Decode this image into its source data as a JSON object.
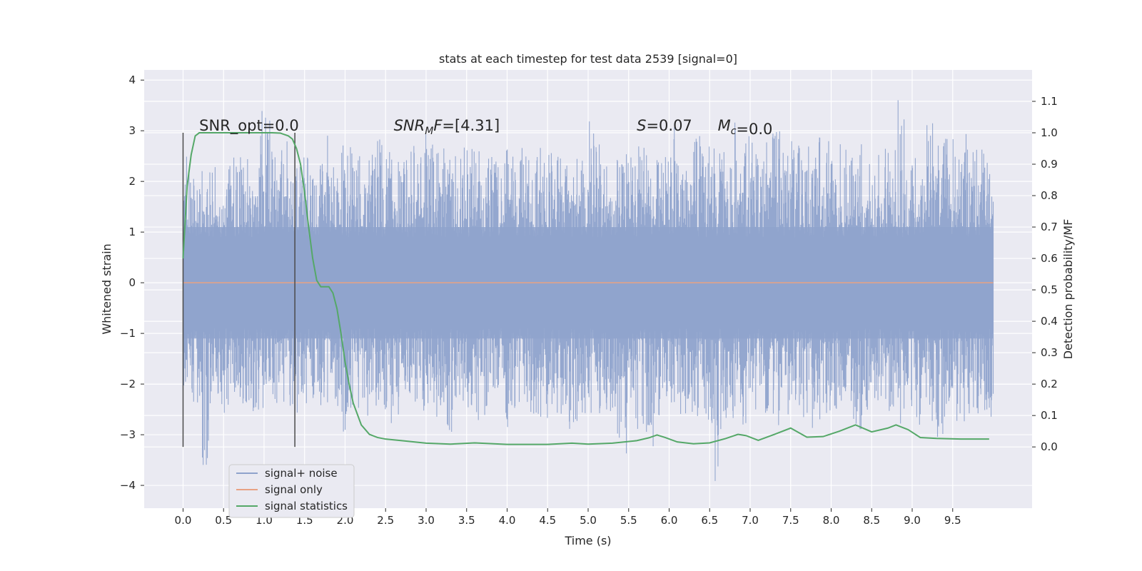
{
  "chart_data": {
    "type": "line",
    "title": "stats at each timestep for test data 2539 [signal=0]",
    "xlabel": "Time (s)",
    "ylabel": "Whitened strain",
    "y2label": "Detection probability/MF",
    "xlim": [
      -0.48,
      10.48
    ],
    "ylim": [
      -4.45,
      4.2
    ],
    "y2lim": [
      -0.195,
      1.2
    ],
    "grid": true,
    "xticks": [
      "0.0",
      "0.5",
      "1.0",
      "1.5",
      "2.0",
      "2.5",
      "3.0",
      "3.5",
      "4.0",
      "4.5",
      "5.0",
      "5.5",
      "6.0",
      "6.5",
      "7.0",
      "7.5",
      "8.0",
      "8.5",
      "9.0",
      "9.5"
    ],
    "yticks": [
      "4",
      "3",
      "2",
      "1",
      "0",
      "−1",
      "−2",
      "−3",
      "−4"
    ],
    "y2ticks": [
      "1.1",
      "1.0",
      "0.9",
      "0.8",
      "0.7",
      "0.6",
      "0.5",
      "0.4",
      "0.3",
      "0.2",
      "0.1",
      "0.0"
    ],
    "legend_position": "lower-left",
    "series": [
      {
        "name": "signal+ noise",
        "color": "#8fa3cc",
        "x_range": [
          0.0,
          10.0
        ],
        "envelope_upper": [
          2.5,
          2.3,
          2.2,
          2.6,
          2.4,
          2.6,
          2.7,
          2.5,
          3.4,
          2.6,
          2.8,
          2.4,
          2.7,
          2.5,
          3.0,
          2.6,
          2.8,
          2.7,
          2.5,
          2.6,
          2.9,
          2.6,
          2.4,
          2.7,
          2.5,
          3.0,
          2.6,
          2.8,
          2.5,
          2.7,
          2.6,
          2.8,
          2.5,
          2.7,
          2.6,
          2.9,
          2.5,
          2.7,
          2.6,
          2.5,
          2.8,
          2.6,
          3.2,
          2.8,
          2.6,
          2.7,
          2.5,
          2.8,
          2.6,
          2.9,
          3.1,
          2.7,
          2.6,
          2.9,
          2.7,
          2.8,
          2.6,
          3.3,
          2.9,
          2.7,
          2.8,
          3.1,
          2.6,
          2.8,
          2.7,
          3.0,
          2.8,
          2.6,
          2.9,
          2.7,
          2.8,
          2.5,
          2.7,
          2.9,
          3.8,
          2.7,
          2.6,
          3.2,
          2.8,
          2.9,
          2.7,
          3.1,
          2.8,
          2.6
        ],
        "envelope_lower": [
          -2.2,
          -2.4,
          -4.0,
          -2.5,
          -2.6,
          -2.3,
          -2.5,
          -2.6,
          -2.7,
          -2.5,
          -2.4,
          -2.6,
          -2.5,
          -2.3,
          -2.6,
          -2.5,
          -3.0,
          -2.6,
          -2.5,
          -2.7,
          -2.6,
          -2.8,
          -2.6,
          -2.5,
          -2.7,
          -2.6,
          -2.8,
          -3.1,
          -2.7,
          -2.6,
          -2.8,
          -2.7,
          -2.6,
          -2.9,
          -2.7,
          -2.8,
          -2.6,
          -2.7,
          -2.8,
          -2.6,
          -2.9,
          -2.7,
          -2.8,
          -2.6,
          -2.7,
          -3.4,
          -2.8,
          -2.9,
          -3.5,
          -2.7,
          -2.8,
          -2.6,
          -2.8,
          -2.7,
          -2.9,
          -4.0,
          -2.8,
          -2.7,
          -2.9,
          -2.8,
          -2.7,
          -2.9,
          -2.8,
          -2.6,
          -2.7,
          -2.9,
          -2.8,
          -2.7,
          -2.6,
          -2.8,
          -2.9,
          -2.7,
          -2.8,
          -2.6,
          -2.8,
          -2.7,
          -2.9,
          -2.8,
          -3.1,
          -2.7,
          -2.8,
          -2.9,
          -2.7,
          -2.8
        ]
      },
      {
        "name": "signal only",
        "color": "#e8a283",
        "x": [
          0.0,
          10.0
        ],
        "y": [
          0.0,
          0.0
        ]
      },
      {
        "name": "signal statistics",
        "color": "#55a868",
        "axis": "right",
        "x": [
          0.0,
          0.05,
          0.1,
          0.15,
          0.2,
          0.3,
          0.5,
          0.8,
          1.0,
          1.1,
          1.2,
          1.3,
          1.35,
          1.4,
          1.45,
          1.5,
          1.55,
          1.6,
          1.65,
          1.7,
          1.75,
          1.8,
          1.85,
          1.9,
          1.95,
          2.0,
          2.05,
          2.1,
          2.2,
          2.3,
          2.4,
          2.5,
          2.7,
          3.0,
          3.3,
          3.6,
          4.0,
          4.5,
          4.8,
          5.0,
          5.3,
          5.6,
          5.75,
          5.85,
          5.95,
          6.1,
          6.3,
          6.5,
          6.7,
          6.85,
          6.95,
          7.1,
          7.3,
          7.5,
          7.7,
          7.9,
          8.1,
          8.3,
          8.5,
          8.7,
          8.8,
          8.95,
          9.1,
          9.3,
          9.6,
          9.8,
          9.95
        ],
        "y": [
          0.6,
          0.83,
          0.93,
          0.99,
          1.0,
          1.0,
          1.0,
          1.0,
          1.0,
          1.0,
          0.999,
          0.99,
          0.98,
          0.95,
          0.9,
          0.81,
          0.7,
          0.6,
          0.53,
          0.51,
          0.51,
          0.51,
          0.49,
          0.44,
          0.36,
          0.27,
          0.2,
          0.14,
          0.07,
          0.04,
          0.03,
          0.025,
          0.02,
          0.012,
          0.009,
          0.013,
          0.008,
          0.008,
          0.012,
          0.009,
          0.012,
          0.02,
          0.029,
          0.038,
          0.03,
          0.016,
          0.01,
          0.013,
          0.027,
          0.04,
          0.036,
          0.021,
          0.04,
          0.06,
          0.031,
          0.033,
          0.05,
          0.07,
          0.048,
          0.06,
          0.07,
          0.055,
          0.03,
          0.027,
          0.025,
          0.025,
          0.025
        ]
      }
    ],
    "vlines": [
      0.0,
      1.38
    ],
    "annotations": [
      {
        "text": "SNR_opt=0.0",
        "x": 0.2,
        "y": 3.0
      },
      {
        "text": "=[4.31]",
        "math_base": "SNR",
        "math_sub": "M",
        "math_after": "F",
        "x": 2.6,
        "y": 3.0
      },
      {
        "text": "=0.07",
        "math_base": "S",
        "x": 5.6,
        "y": 3.0
      },
      {
        "text": "=0.0",
        "math_base": "M",
        "math_sub": "c",
        "x": 6.6,
        "y": 3.0
      }
    ]
  }
}
